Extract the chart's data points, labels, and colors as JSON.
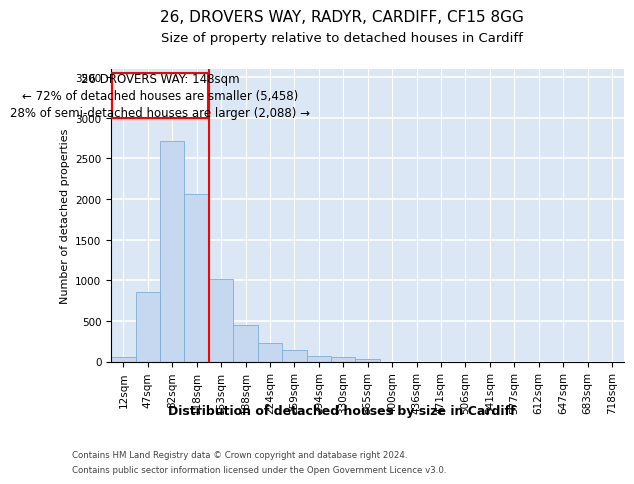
{
  "title_line1": "26, DROVERS WAY, RADYR, CARDIFF, CF15 8GG",
  "title_line2": "Size of property relative to detached houses in Cardiff",
  "xlabel": "Distribution of detached houses by size in Cardiff",
  "ylabel": "Number of detached properties",
  "footer_line1": "Contains HM Land Registry data © Crown copyright and database right 2024.",
  "footer_line2": "Contains public sector information licensed under the Open Government Licence v3.0.",
  "bar_labels": [
    "12sqm",
    "47sqm",
    "82sqm",
    "118sqm",
    "153sqm",
    "188sqm",
    "224sqm",
    "259sqm",
    "294sqm",
    "330sqm",
    "365sqm",
    "400sqm",
    "436sqm",
    "471sqm",
    "506sqm",
    "541sqm",
    "577sqm",
    "612sqm",
    "647sqm",
    "683sqm",
    "718sqm"
  ],
  "bar_values": [
    60,
    850,
    2720,
    2060,
    1010,
    455,
    225,
    145,
    70,
    55,
    30,
    0,
    0,
    0,
    0,
    0,
    0,
    0,
    0,
    0,
    0
  ],
  "bar_color": "#c5d8f0",
  "bar_edge_color": "#7bafd4",
  "vline_x_index": 3.5,
  "vline_color": "red",
  "annotation_line1": "26 DROVERS WAY: 148sqm",
  "annotation_line2": "← 72% of detached houses are smaller (5,458)",
  "annotation_line3": "28% of semi-detached houses are larger (2,088) →",
  "ylim": [
    0,
    3600
  ],
  "yticks": [
    0,
    500,
    1000,
    1500,
    2000,
    2500,
    3000,
    3500
  ],
  "plot_bg_color": "#dce7f5",
  "grid_color": "white",
  "title_fontsize": 11,
  "subtitle_fontsize": 9.5,
  "annotation_fontsize": 8.5,
  "xlabel_fontsize": 9,
  "ylabel_fontsize": 8,
  "tick_fontsize": 7.5
}
